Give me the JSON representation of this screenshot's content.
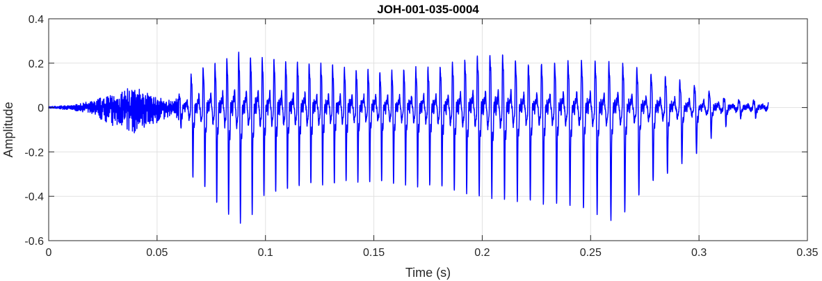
{
  "chart_data": {
    "type": "line",
    "title": "JOH-001-035-0004",
    "xlabel": "Time (s)",
    "ylabel": "Amplitude",
    "xlim": [
      0,
      0.35
    ],
    "ylim": [
      -0.6,
      0.4
    ],
    "xticks": [
      0,
      0.05,
      0.1,
      0.15,
      0.2,
      0.25,
      0.3,
      0.35
    ],
    "xtick_labels": [
      "0",
      "0.05",
      "0.1",
      "0.15",
      "0.2",
      "0.25",
      "0.3",
      "0.35"
    ],
    "yticks": [
      -0.6,
      -0.4,
      -0.2,
      0,
      0.2,
      0.4
    ],
    "ytick_labels": [
      "-0.6",
      "-0.4",
      "-0.2",
      "0",
      "0.2",
      "0.4"
    ],
    "grid": true,
    "legend": "none",
    "series": [
      {
        "color": "#0000ff",
        "sample_rate_hz": 16000,
        "duration_s": 0.332,
        "envelope": {
          "t": [
            0,
            0.01,
            0.02,
            0.03,
            0.04,
            0.05,
            0.058,
            0.062,
            0.065,
            0.07,
            0.08,
            0.086,
            0.09,
            0.1,
            0.12,
            0.15,
            0.18,
            0.206,
            0.22,
            0.25,
            0.262,
            0.27,
            0.28,
            0.3,
            0.31,
            0.32,
            0.332
          ],
          "max": [
            0.005,
            0.01,
            0.03,
            0.07,
            0.1,
            0.05,
            0.03,
            0.1,
            0.18,
            0.22,
            0.26,
            0.31,
            0.3,
            0.27,
            0.25,
            0.2,
            0.23,
            0.31,
            0.24,
            0.26,
            0.25,
            0.22,
            0.18,
            0.12,
            0.06,
            0.04,
            0.03
          ],
          "min": [
            -0.005,
            -0.01,
            -0.03,
            -0.09,
            -0.12,
            -0.07,
            -0.03,
            -0.1,
            -0.28,
            -0.3,
            -0.43,
            -0.45,
            -0.48,
            -0.35,
            -0.3,
            -0.3,
            -0.32,
            -0.35,
            -0.38,
            -0.42,
            -0.48,
            -0.38,
            -0.3,
            -0.18,
            -0.08,
            -0.04,
            -0.03
          ]
        }
      }
    ]
  }
}
